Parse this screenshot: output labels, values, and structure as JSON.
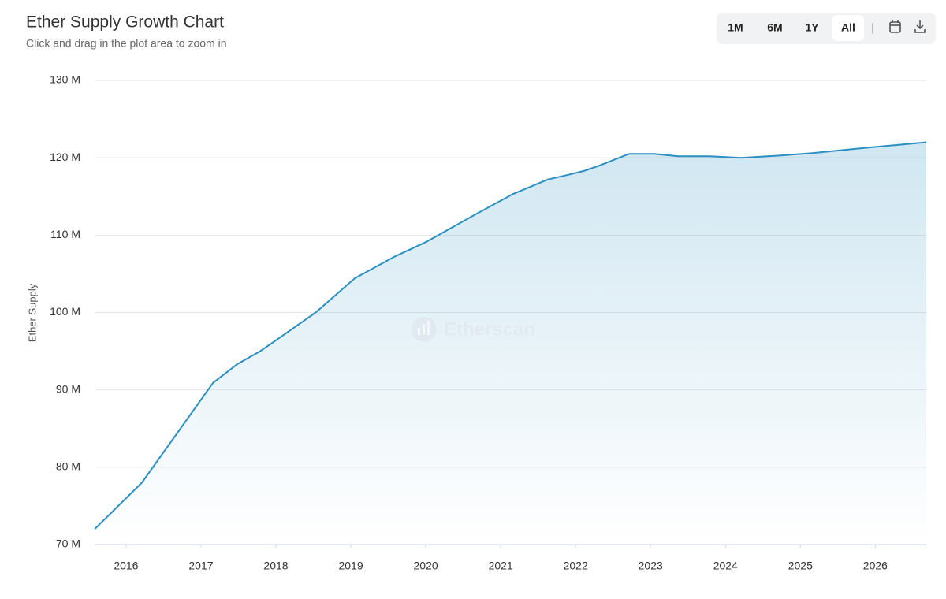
{
  "chart_data": {
    "type": "line",
    "title": "Ether Supply Growth Chart",
    "subtitle": "Click and drag in the plot area to zoom in",
    "y_label": "Ether Supply",
    "watermark": "Etherscan",
    "color": "#2b8fc2",
    "x": [
      2015.58,
      2016.21,
      2017.16,
      2017.48,
      2017.79,
      2018.0,
      2018.53,
      2019.05,
      2019.58,
      2020.0,
      2020.63,
      2021.16,
      2021.63,
      2021.9,
      2022.11,
      2022.32,
      2022.53,
      2022.71,
      2023.05,
      2023.37,
      2023.79,
      2024.21,
      2024.74,
      2025.16,
      2025.89,
      2026.68
    ],
    "values": [
      72.0,
      78.0,
      90.9,
      93.3,
      95.0,
      96.4,
      100.0,
      104.4,
      107.2,
      109.1,
      112.5,
      115.3,
      117.2,
      117.8,
      118.3,
      119.0,
      119.8,
      120.5,
      120.5,
      120.2,
      120.2,
      120.0,
      120.3,
      120.6,
      121.3,
      122.0
    ],
    "xlim": [
      2015.58,
      2026.68
    ],
    "xticks": [
      2016,
      2017,
      2018,
      2019,
      2020,
      2021,
      2022,
      2023,
      2024,
      2025,
      2026
    ],
    "ylim": [
      70,
      130
    ],
    "yticks": [
      {
        "value": 70,
        "label": "70 M"
      },
      {
        "value": 80,
        "label": "80 M"
      },
      {
        "value": 90,
        "label": "90 M"
      },
      {
        "value": 100,
        "label": "100 M"
      },
      {
        "value": 110,
        "label": "110 M"
      },
      {
        "value": 120,
        "label": "120 M"
      },
      {
        "value": 130,
        "label": "130 M"
      }
    ],
    "grid": true
  },
  "range_buttons": [
    "1M",
    "6M",
    "1Y",
    "All"
  ],
  "selected_button": 3
}
